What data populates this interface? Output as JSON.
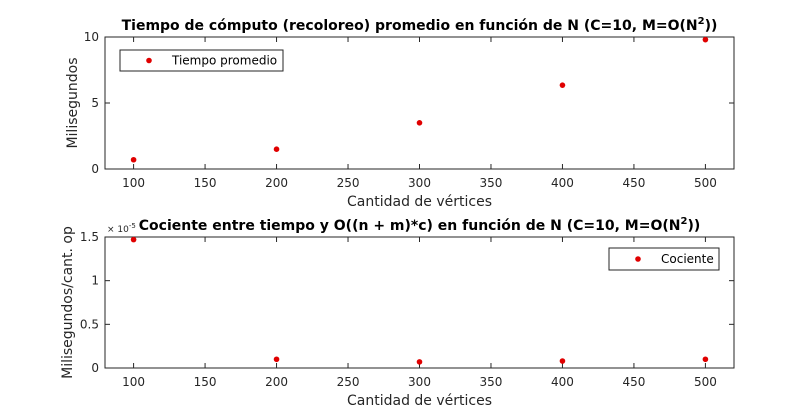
{
  "chart_data": [
    {
      "type": "scatter",
      "title": "Tiempo de cómputo (recoloreo) promedio en función de N (C=10, M=O(N",
      "title_sup": "2",
      "title_end": "))",
      "xlabel": "Cantidad de vértices",
      "ylabel": "Milisegundos",
      "xlim": [
        80,
        520
      ],
      "ylim": [
        0,
        10
      ],
      "xticks": [
        100,
        150,
        200,
        250,
        300,
        350,
        400,
        450,
        500
      ],
      "yticks": [
        0,
        5,
        10
      ],
      "grid": false,
      "legend": "top-left",
      "color": "#e00000",
      "series": [
        {
          "name": "Tiempo promedio",
          "x": [
            100,
            200,
            300,
            400,
            500
          ],
          "y": [
            0.7,
            1.5,
            3.5,
            6.35,
            9.8
          ]
        }
      ]
    },
    {
      "type": "scatter",
      "title": "Cociente entre tiempo y O((n + m)*c) en función de N (C=10, M=O(N",
      "title_sup": "2",
      "title_end": "))",
      "xlabel": "Cantidad de vértices",
      "ylabel": "Milisegundos/cant. op",
      "exponent_label": "× 10",
      "exponent_power": "-5",
      "xlim": [
        80,
        520
      ],
      "ylim": [
        0,
        1.5
      ],
      "xticks": [
        100,
        150,
        200,
        250,
        300,
        350,
        400,
        450,
        500
      ],
      "yticks": [
        0,
        0.5,
        1,
        1.5
      ],
      "grid": false,
      "legend": "top-right",
      "color": "#e00000",
      "series": [
        {
          "name": "Cociente",
          "x": [
            100,
            200,
            300,
            400,
            500
          ],
          "y": [
            1.47,
            0.1,
            0.07,
            0.08,
            0.1
          ]
        }
      ]
    }
  ]
}
